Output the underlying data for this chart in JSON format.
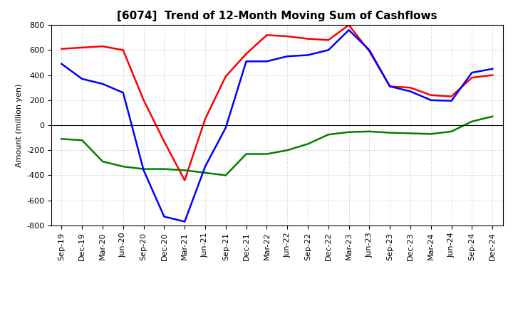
{
  "title": "[6074]  Trend of 12-Month Moving Sum of Cashflows",
  "ylabel": "Amount (million yen)",
  "xlabels": [
    "Sep-19",
    "Dec-19",
    "Mar-20",
    "Jun-20",
    "Sep-20",
    "Dec-20",
    "Mar-21",
    "Jun-21",
    "Sep-21",
    "Dec-21",
    "Mar-22",
    "Jun-22",
    "Sep-22",
    "Dec-22",
    "Mar-23",
    "Jun-23",
    "Sep-23",
    "Dec-23",
    "Mar-24",
    "Jun-24",
    "Sep-24",
    "Dec-24"
  ],
  "ylim": [
    -800,
    800
  ],
  "yticks": [
    -800,
    -600,
    -400,
    -200,
    0,
    200,
    400,
    600,
    800
  ],
  "operating": [
    610,
    620,
    630,
    600,
    200,
    -130,
    -440,
    50,
    390,
    570,
    720,
    710,
    690,
    680,
    800,
    590,
    310,
    300,
    240,
    230,
    380,
    400
  ],
  "investing": [
    -110,
    -120,
    -290,
    -330,
    -350,
    -350,
    -360,
    -380,
    -400,
    -230,
    -230,
    -200,
    -150,
    -75,
    -55,
    -50,
    -60,
    -65,
    -70,
    -50,
    30,
    70
  ],
  "free": [
    490,
    370,
    330,
    260,
    -360,
    -730,
    -770,
    -330,
    -20,
    510,
    510,
    550,
    560,
    600,
    760,
    600,
    310,
    270,
    200,
    195,
    420,
    450
  ],
  "operating_color": "#ff0000",
  "investing_color": "#008000",
  "free_color": "#0000ff",
  "background_color": "#ffffff",
  "grid_color": "#bbbbbb",
  "linewidth": 1.8,
  "title_fontsize": 11,
  "axis_fontsize": 8,
  "ylabel_fontsize": 8
}
